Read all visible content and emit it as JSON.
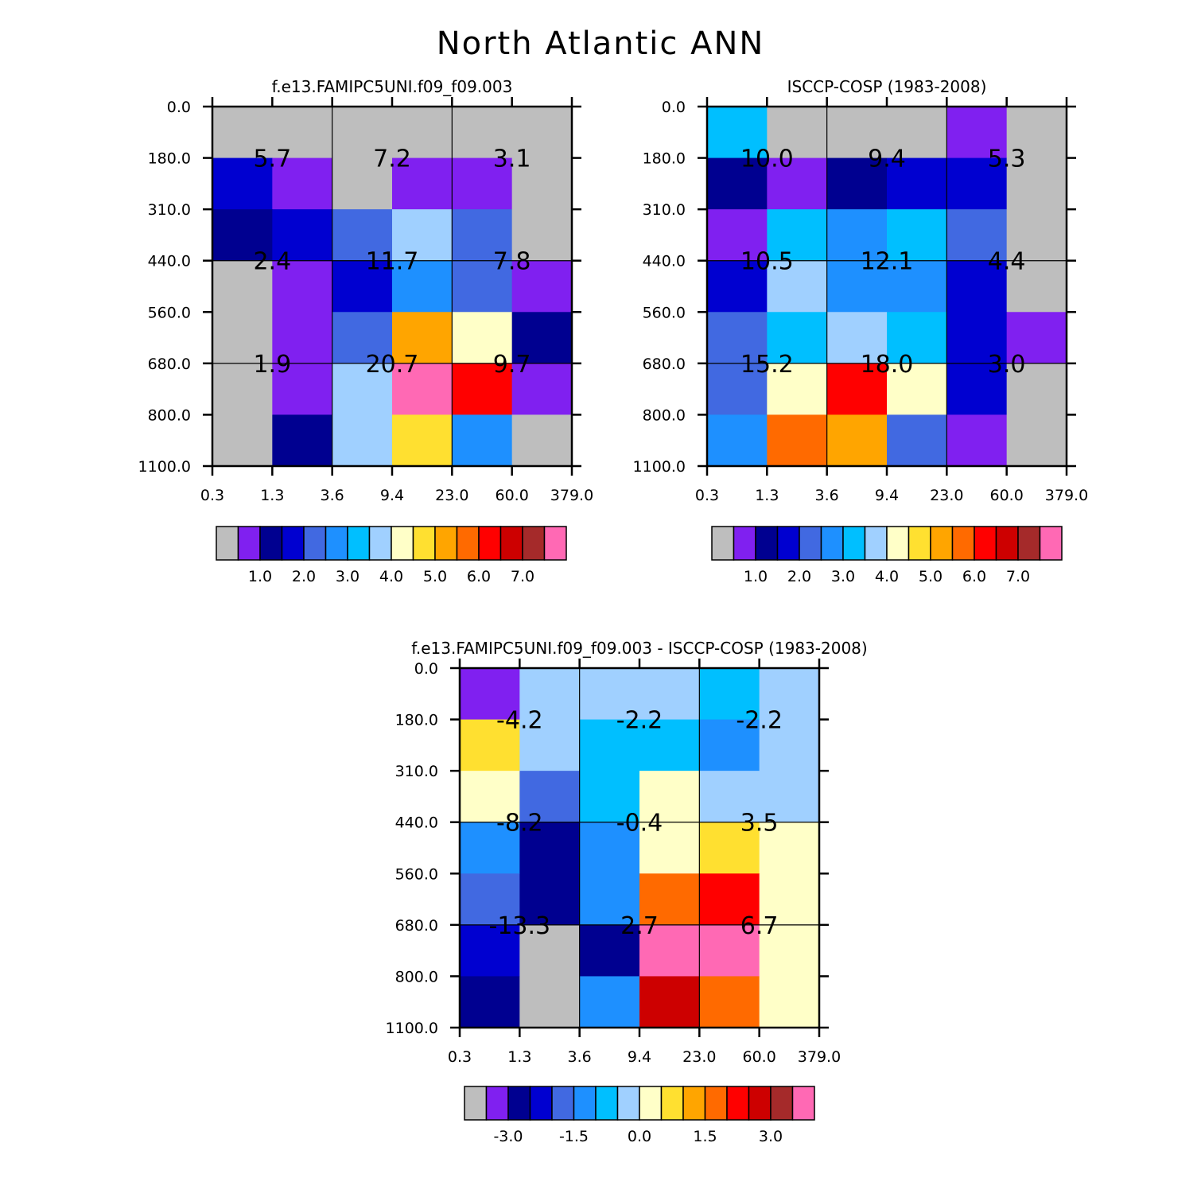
{
  "title": "North Atlantic ANN",
  "colors": {
    "palette": [
      "#bebebe",
      "#8020f0",
      "#000090",
      "#0000d0",
      "#4169e1",
      "#1e90ff",
      "#00bfff",
      "#a0d0ff",
      "#ffffc8",
      "#ffe030",
      "#ffa500",
      "#ff6a00",
      "#ff0000",
      "#cd0000",
      "#a52a2a",
      "#ff69b4"
    ]
  },
  "chart_data": [
    {
      "type": "heatmap",
      "title": "f.e13.FAMIPC5UNI.f09_f09.003",
      "x_ticks": [
        "0.3",
        "1.3",
        "3.6",
        "9.4",
        "23.0",
        "60.0",
        "379.0"
      ],
      "y_ticks": [
        "0.0",
        "180.0",
        "310.0",
        "440.0",
        "560.0",
        "680.0",
        "800.0",
        "1100.0"
      ],
      "cell_color_index": [
        [
          0,
          0,
          0,
          0,
          0,
          0
        ],
        [
          3,
          1,
          0,
          1,
          1,
          0
        ],
        [
          2,
          3,
          4,
          7,
          4,
          0
        ],
        [
          0,
          1,
          3,
          5,
          4,
          1
        ],
        [
          0,
          1,
          4,
          10,
          8,
          2
        ],
        [
          0,
          1,
          7,
          15,
          12,
          1
        ],
        [
          0,
          2,
          7,
          9,
          5,
          0
        ]
      ],
      "block_values": [
        [
          "5.7",
          "7.2",
          "3.1"
        ],
        [
          "2.4",
          "11.7",
          "7.8"
        ],
        [
          "1.9",
          "20.7",
          "9.7"
        ]
      ],
      "colorbar": {
        "tick_labels": [
          "1.0",
          "2.0",
          "3.0",
          "4.0",
          "5.0",
          "6.0",
          "7.0"
        ],
        "first_boundary_index": 2,
        "step": 2
      }
    },
    {
      "type": "heatmap",
      "title": "ISCCP-COSP (1983-2008)",
      "x_ticks": [
        "0.3",
        "1.3",
        "3.6",
        "9.4",
        "23.0",
        "60.0",
        "379.0"
      ],
      "y_ticks": [
        "0.0",
        "180.0",
        "310.0",
        "440.0",
        "560.0",
        "680.0",
        "800.0",
        "1100.0"
      ],
      "cell_color_index": [
        [
          6,
          0,
          0,
          0,
          1,
          0
        ],
        [
          2,
          1,
          2,
          3,
          3,
          0
        ],
        [
          1,
          6,
          5,
          6,
          4,
          0
        ],
        [
          3,
          7,
          5,
          5,
          3,
          0
        ],
        [
          4,
          6,
          7,
          6,
          3,
          1
        ],
        [
          4,
          8,
          12,
          8,
          3,
          0
        ],
        [
          5,
          11,
          10,
          4,
          1,
          0
        ]
      ],
      "block_values": [
        [
          "10.0",
          "9.4",
          "5.3"
        ],
        [
          "10.5",
          "12.1",
          "4.4"
        ],
        [
          "15.2",
          "18.0",
          "3.0"
        ]
      ],
      "colorbar": {
        "tick_labels": [
          "1.0",
          "2.0",
          "3.0",
          "4.0",
          "5.0",
          "6.0",
          "7.0"
        ],
        "first_boundary_index": 2,
        "step": 2
      }
    },
    {
      "type": "heatmap",
      "title": "f.e13.FAMIPC5UNI.f09_f09.003 - ISCCP-COSP (1983-2008)",
      "x_ticks": [
        "0.3",
        "1.3",
        "3.6",
        "9.4",
        "23.0",
        "60.0",
        "379.0"
      ],
      "y_ticks": [
        "0.0",
        "180.0",
        "310.0",
        "440.0",
        "560.0",
        "680.0",
        "800.0",
        "1100.0"
      ],
      "cell_color_index": [
        [
          1,
          7,
          7,
          7,
          6,
          7
        ],
        [
          9,
          7,
          6,
          6,
          5,
          7
        ],
        [
          8,
          4,
          6,
          8,
          7,
          7
        ],
        [
          5,
          2,
          5,
          8,
          9,
          8
        ],
        [
          4,
          2,
          5,
          11,
          12,
          8
        ],
        [
          3,
          0,
          2,
          15,
          15,
          8
        ],
        [
          2,
          0,
          5,
          13,
          11,
          8
        ]
      ],
      "block_values": [
        [
          "-4.2",
          "-2.2",
          "-2.2"
        ],
        [
          "-8.2",
          "-0.4",
          "3.5"
        ],
        [
          "-13.3",
          "2.7",
          "6.7"
        ]
      ],
      "colorbar": {
        "tick_labels": [
          "-3.0",
          "-1.5",
          "0.0",
          "1.5",
          "3.0"
        ],
        "first_boundary_index": 2,
        "step": 3
      }
    }
  ]
}
